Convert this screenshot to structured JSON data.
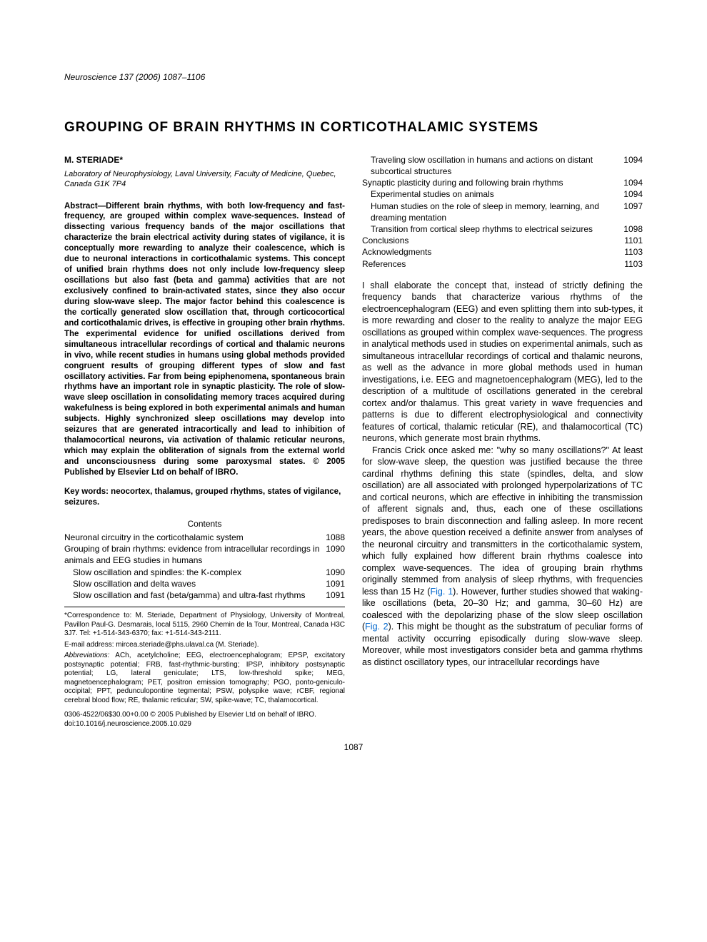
{
  "journal_header": "Neuroscience 137 (2006) 1087–1106",
  "title": "GROUPING OF BRAIN RHYTHMS IN CORTICOTHALAMIC SYSTEMS",
  "author": "M. STERIADE*",
  "affiliation": "Laboratory of Neurophysiology, Laval University, Faculty of Medicine, Quebec, Canada G1K 7P4",
  "abstract": "Abstract—Different brain rhythms, with both low-frequency and fast-frequency, are grouped within complex wave-sequences. Instead of dissecting various frequency bands of the major oscillations that characterize the brain electrical activity during states of vigilance, it is conceptually more rewarding to analyze their coalescence, which is due to neuronal interactions in corticothalamic systems. This concept of unified brain rhythms does not only include low-frequency sleep oscillations but also fast (beta and gamma) activities that are not exclusively confined to brain-activated states, since they also occur during slow-wave sleep. The major factor behind this coalescence is the cortically generated slow oscillation that, through corticocortical and corticothalamic drives, is effective in grouping other brain rhythms. The experimental evidence for unified oscillations derived from simultaneous intracellular recordings of cortical and thalamic neurons in vivo, while recent studies in humans using global methods provided congruent results of grouping different types of slow and fast oscillatory activities. Far from being epiphenomena, spontaneous brain rhythms have an important role in synaptic plasticity. The role of slow-wave sleep oscillation in consolidating memory traces acquired during wakefulness is being explored in both experimental animals and human subjects. Highly synchronized sleep oscillations may develop into seizures that are generated intracortically and lead to inhibition of thalamocortical neurons, via activation of thalamic reticular neurons, which may explain the obliteration of signals from the external world and unconsciousness during some paroxysmal states. © 2005 Published by Elsevier Ltd on behalf of IBRO.",
  "keywords": "Key words: neocortex, thalamus, grouped rhythms, states of vigilance, seizures.",
  "contents_label": "Contents",
  "toc_left": [
    {
      "label": "Neuronal circuitry in the corticothalamic system",
      "page": "1088",
      "indent": false
    },
    {
      "label": "Grouping of brain rhythms: evidence from intracellular recordings in animals and EEG studies in humans",
      "page": "1090",
      "indent": false
    },
    {
      "label": "Slow oscillation and spindles: the K-complex",
      "page": "1090",
      "indent": true
    },
    {
      "label": "Slow oscillation and delta waves",
      "page": "1091",
      "indent": true
    },
    {
      "label": "Slow oscillation and fast (beta/gamma) and ultra-fast rhythms",
      "page": "1091",
      "indent": true
    }
  ],
  "toc_right": [
    {
      "label": "Traveling slow oscillation in humans and actions on distant subcortical structures",
      "page": "1094",
      "indent": true
    },
    {
      "label": "Synaptic plasticity during and following brain rhythms",
      "page": "1094",
      "indent": false
    },
    {
      "label": "Experimental studies on animals",
      "page": "1094",
      "indent": true
    },
    {
      "label": "Human studies on the role of sleep in memory, learning, and dreaming mentation",
      "page": "1097",
      "indent": true
    },
    {
      "label": "Transition from cortical sleep rhythms to electrical seizures",
      "page": "1098",
      "indent": true
    },
    {
      "label": "Conclusions",
      "page": "1101",
      "indent": false
    },
    {
      "label": "Acknowledgments",
      "page": "1103",
      "indent": false
    },
    {
      "label": "References",
      "page": "1103",
      "indent": false
    }
  ],
  "footnotes": {
    "correspondence": "*Correspondence to: M. Steriade, Department of Physiology, University of Montreal, Pavillon Paul-G. Desmarais, local 5115, 2960 Chemin de la Tour, Montreal, Canada H3C 3J7. Tel: +1-514-343-6370; fax: +1-514-343-2111.",
    "email": "E-mail address: mircea.steriade@phs.ulaval.ca (M. Steriade).",
    "abbreviations": "Abbreviations: ACh, acetylcholine; EEG, electroencephalogram; EPSP, excitatory postsynaptic potential; FRB, fast-rhythmic-bursting; IPSP, inhibitory postsynaptic potential; LG, lateral geniculate; LTS, low-threshold spike; MEG, magnetoencephalogram; PET, positron emission tomography; PGO, ponto-geniculo-occipital; PPT, pedunculopontine tegmental; PSW, polyspike wave; rCBF, regional cerebral blood flow; RE, thalamic reticular; SW, spike-wave; TC, thalamocortical."
  },
  "copyright": "0306-4522/06$30.00+0.00 © 2005 Published by Elsevier Ltd on behalf of IBRO.\ndoi:10.1016/j.neuroscience.2005.10.029",
  "body": {
    "p1": "I shall elaborate the concept that, instead of strictly defining the frequency bands that characterize various rhythms of the electroencephalogram (EEG) and even splitting them into sub-types, it is more rewarding and closer to the reality to analyze the major EEG oscillations as grouped within complex wave-sequences. The progress in analytical methods used in studies on experimental animals, such as simultaneous intracellular recordings of cortical and thalamic neurons, as well as the advance in more global methods used in human investigations, i.e. EEG and magnetoencephalogram (MEG), led to the description of a multitude of oscillations generated in the cerebral cortex and/or thalamus. This great variety in wave frequencies and patterns is due to different electrophysiological and connectivity features of cortical, thalamic reticular (RE), and thalamocortical (TC) neurons, which generate most brain rhythms.",
    "p2a": "Francis Crick once asked me: \"why so many oscillations?\" At least for slow-wave sleep, the question was justified because the three cardinal rhythms defining this state (spindles, delta, and slow oscillation) are all associated with prolonged hyperpolarizations of TC and cortical neurons, which are effective in inhibiting the transmission of afferent signals and, thus, each one of these oscillations predisposes to brain disconnection and falling asleep. In more recent years, the above question received a definite answer from analyses of the neuronal circuitry and transmitters in the corticothalamic system, which fully explained how different brain rhythms coalesce into complex wave-sequences. The idea of grouping brain rhythms originally stemmed from analysis of sleep rhythms, with frequencies less than 15 Hz (",
    "fig1": "Fig. 1",
    "p2b": "). However, further studies showed that waking-like oscillations (beta, 20–30 Hz; and gamma, 30–60 Hz) are coalesced with the depolarizing phase of the slow sleep oscillation (",
    "fig2": "Fig. 2",
    "p2c": "). This might be thought as the substratum of peculiar forms of mental activity occurring episodically during slow-wave sleep. Moreover, while most investigators consider beta and gamma rhythms as distinct oscillatory types, our intracellular recordings have"
  },
  "page_number": "1087"
}
